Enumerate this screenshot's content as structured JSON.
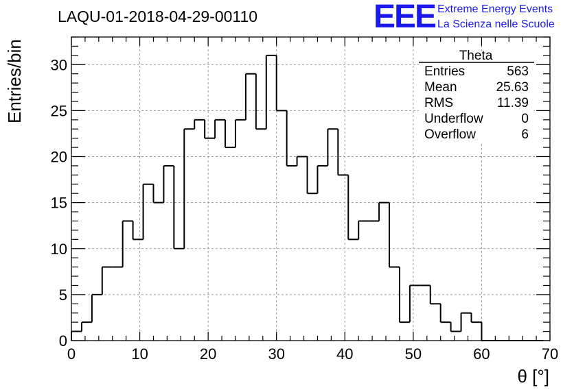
{
  "colors": {
    "logo": "#1a1aee",
    "grid": "#999999",
    "line": "#000000"
  },
  "chart_data": {
    "type": "bar",
    "style": "step-histogram",
    "title": "LAQU-01-2018-04-29-00110",
    "xlabel": "θ [°]",
    "ylabel": "Entries/bin",
    "xlim": [
      0,
      70
    ],
    "ylim": [
      0,
      33
    ],
    "grid": true,
    "bin_width": 1.5,
    "x_ticks": [
      0,
      10,
      20,
      30,
      40,
      50,
      60,
      70
    ],
    "y_ticks": [
      0,
      5,
      10,
      15,
      20,
      25,
      30
    ],
    "bin_edges_start": 0,
    "values": [
      1,
      2,
      5,
      8,
      8,
      13,
      11,
      17,
      15,
      19,
      10,
      23,
      24,
      22,
      24,
      21,
      24,
      29,
      23,
      31,
      25,
      19,
      20,
      16,
      19,
      23,
      18,
      11,
      13,
      13,
      15,
      8,
      2,
      6,
      6,
      4,
      2,
      1,
      3,
      2,
      0,
      0,
      0,
      0,
      0,
      0,
      0
    ]
  },
  "stats": {
    "name": "Theta",
    "rows": [
      {
        "label": "Entries",
        "value": "563"
      },
      {
        "label": "Mean",
        "value": "25.63"
      },
      {
        "label": "RMS",
        "value": "11.39"
      },
      {
        "label": "Underflow",
        "value": "0"
      },
      {
        "label": "Overflow",
        "value": "6"
      }
    ]
  },
  "logo": {
    "mark": "EEE",
    "line1": "Extreme Energy Events",
    "line2": "La Scienza nelle Scuole"
  }
}
